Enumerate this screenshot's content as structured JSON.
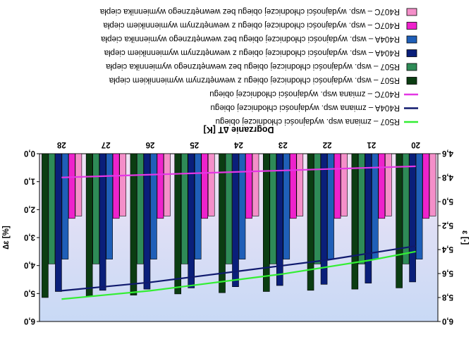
{
  "chart_data": {
    "type": "bar",
    "note_orientation": "image is rotated 180 degrees",
    "title": "Dogrzanie ∆T [K]",
    "xlabel": "Dogrzanie ∆T [K]",
    "ylabel_left": "ε [-]",
    "ylabel_right": "∆ε [%]",
    "categories": [
      "20",
      "21",
      "22",
      "23",
      "24",
      "25",
      "26",
      "27",
      "28"
    ],
    "y_left": {
      "ticks": [
        "4,6",
        "4,8",
        "5,0",
        "5,2",
        "5,4",
        "5,6",
        "5,8",
        "6,0"
      ],
      "range": [
        4.6,
        6.0
      ]
    },
    "y_right": {
      "ticks": [
        "0,0",
        "1,0",
        "2,0",
        "3,0",
        "4,0",
        "5,0",
        "6,0"
      ],
      "range": [
        0.0,
        6.0
      ]
    },
    "series": [
      {
        "name": "R407C – wsp. wydajności chłodniczej obiegu bez wewnętrznego wymiennika ciepła",
        "kind": "bar",
        "color": "#f48fc9",
        "values": [
          5.12,
          5.12,
          5.12,
          5.12,
          5.12,
          5.12,
          5.12,
          5.12,
          5.12
        ]
      },
      {
        "name": "R407C – wsp. wydajności chłodniczej obiegu z wewnętrznym wymiennikiem ciepła",
        "kind": "bar",
        "color": "#ee22cc",
        "values": [
          5.14,
          5.14,
          5.14,
          5.14,
          5.14,
          5.14,
          5.14,
          5.14,
          5.14
        ]
      },
      {
        "name": "R404A – wsp. wydajności chłodniczej obiegu bez wewnętrznego wymiennika ciepła",
        "kind": "bar",
        "color": "#1f5fb8",
        "values": [
          5.48,
          5.48,
          5.48,
          5.48,
          5.48,
          5.48,
          5.48,
          5.48,
          5.48
        ]
      },
      {
        "name": "R404A – wsp. wydajności chłodniczej obiegu z wewnętrznym wymiennikiem ciepła",
        "kind": "bar",
        "color": "#0a1f7a",
        "values": [
          5.67,
          5.68,
          5.69,
          5.7,
          5.71,
          5.72,
          5.73,
          5.74,
          5.75
        ]
      },
      {
        "name": "R507 – wsp. wydajności chłodniczej obiegu bez wewnętrznego wymiennika ciepła",
        "kind": "bar",
        "color": "#2e8b57",
        "values": [
          5.52,
          5.52,
          5.52,
          5.52,
          5.52,
          5.52,
          5.52,
          5.52,
          5.52
        ]
      },
      {
        "name": "R507 – wsp. wydajności chłodniczej obiegu z wewnętrznym wymiennikiem ciepła",
        "kind": "bar",
        "color": "#0b3d12",
        "values": [
          5.72,
          5.73,
          5.74,
          5.75,
          5.76,
          5.77,
          5.78,
          5.79,
          5.8
        ]
      },
      {
        "name": "R407C – zmiana wsp. wydajności chłodniczej obiegu",
        "kind": "line",
        "axis": "right",
        "color": "#e436e4",
        "values": [
          0.45,
          0.5,
          0.55,
          0.6,
          0.65,
          0.7,
          0.75,
          0.8,
          0.85
        ]
      },
      {
        "name": "R404A – zmiana wsp. wydajności chłodniczej obiegu",
        "kind": "line",
        "axis": "right",
        "color": "#101a6e",
        "values": [
          3.3,
          3.55,
          3.8,
          4.0,
          4.2,
          4.4,
          4.6,
          4.75,
          4.9
        ]
      },
      {
        "name": "R507 – zmiana wsp. wydajności chłodniczej obiegu",
        "kind": "line",
        "axis": "right",
        "color": "#33ee33",
        "values": [
          3.5,
          3.8,
          4.05,
          4.3,
          4.5,
          4.7,
          4.9,
          5.05,
          5.2
        ]
      }
    ],
    "legend_order": [
      8,
      7,
      6,
      5,
      4,
      3,
      2,
      1,
      0
    ],
    "legend_placement": "top",
    "grid": false,
    "colors": {
      "plot_bg_top": "#c8d9f5",
      "plot_bg_bottom": "#f0e3f5"
    }
  }
}
